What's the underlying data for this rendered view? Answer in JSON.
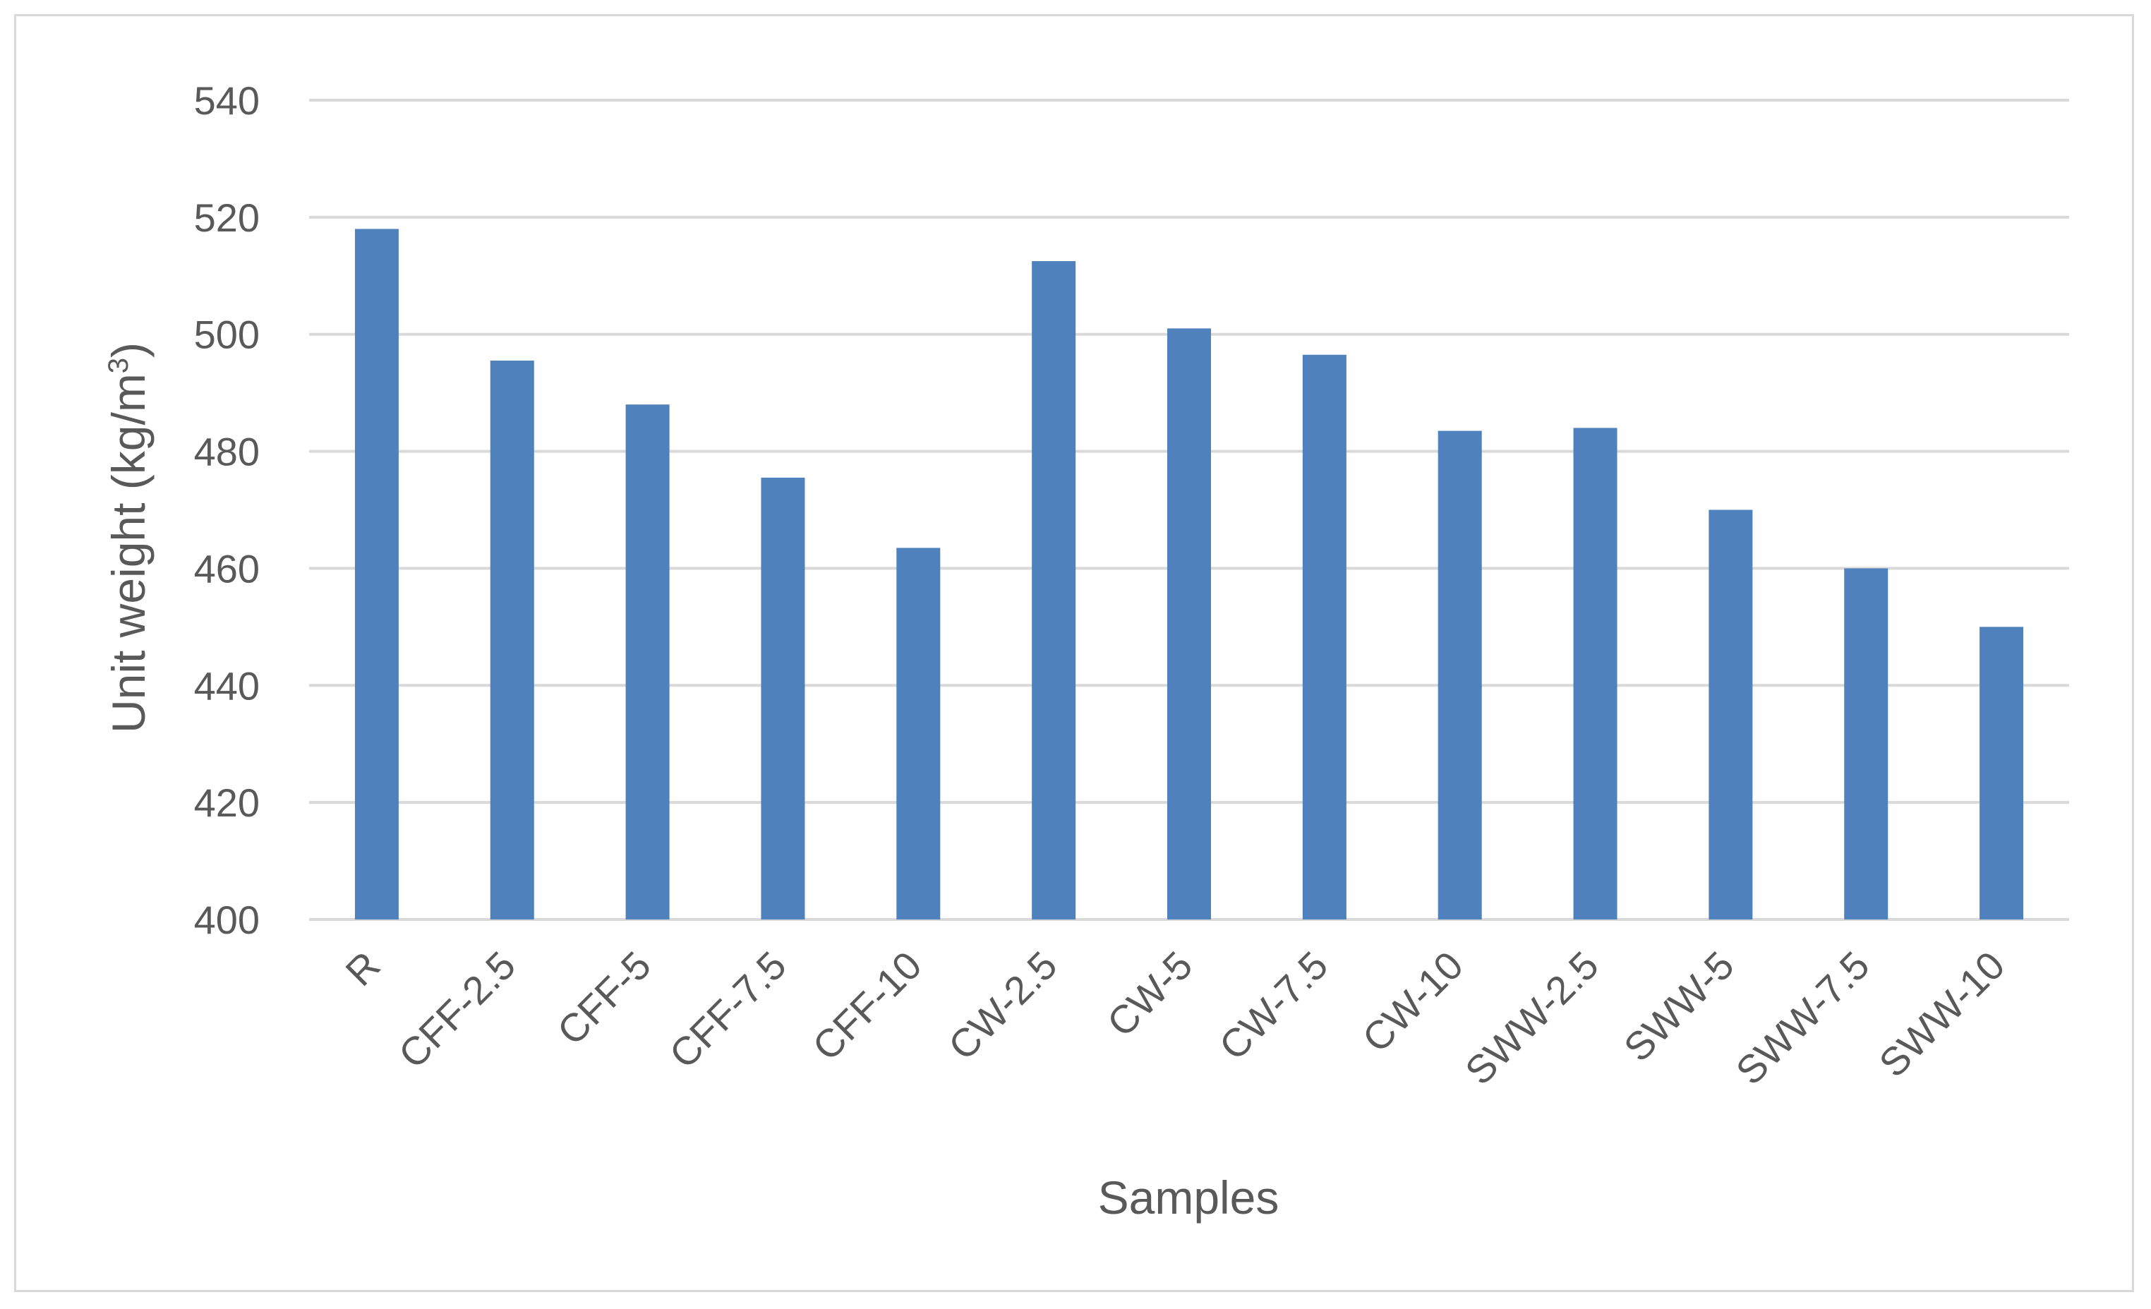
{
  "chart_data": {
    "type": "bar",
    "title": "",
    "xlabel": "Samples",
    "ylabel_main": "Unit weight (kg/m",
    "ylabel_sup": "3",
    "ylabel_end": ")",
    "ylim": [
      400,
      540
    ],
    "yticks": [
      400,
      420,
      440,
      460,
      480,
      500,
      520,
      540
    ],
    "grid": true,
    "legend": "none",
    "bar_color": "#4f81bd",
    "categories": [
      "R",
      "CFF-2.5",
      "CFF-5",
      "CFF-7.5",
      "CFF-10",
      "CW-2.5",
      "CW-5",
      "CW-7.5",
      "CW-10",
      "SWW-2.5",
      "SWW-5",
      "SWW-7.5",
      "SWW-10"
    ],
    "values": [
      518,
      495.5,
      488,
      475.5,
      463.5,
      512.5,
      501,
      496.5,
      483.5,
      484,
      470,
      460,
      450
    ]
  }
}
